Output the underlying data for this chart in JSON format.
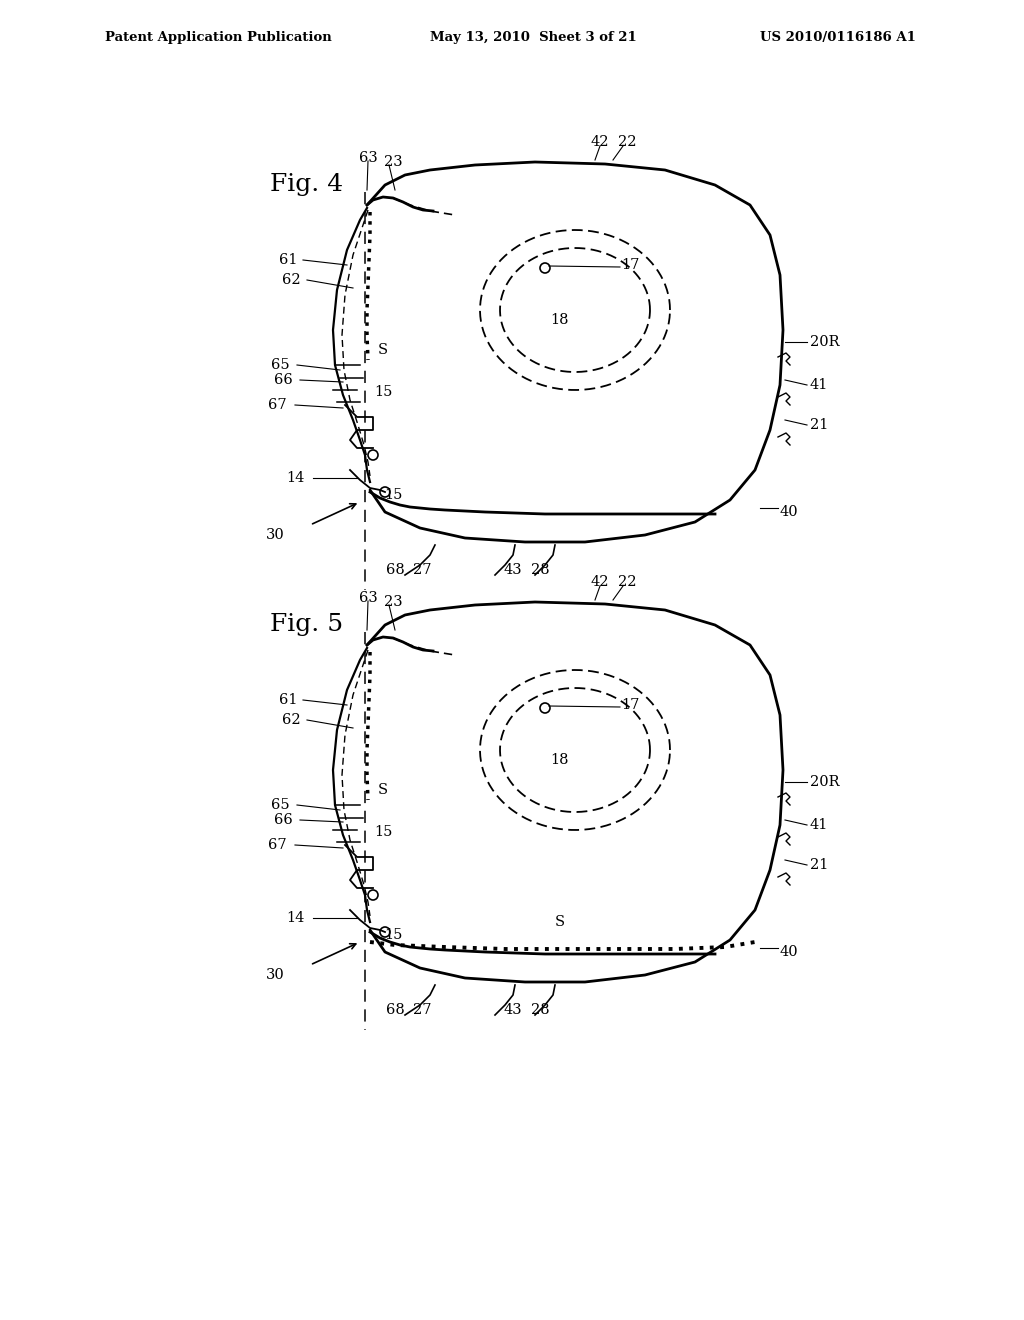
{
  "bg_color": "#ffffff",
  "header_left": "Patent Application Publication",
  "header_mid": "May 13, 2010  Sheet 3 of 21",
  "header_right": "US 2010/0116186 A1"
}
